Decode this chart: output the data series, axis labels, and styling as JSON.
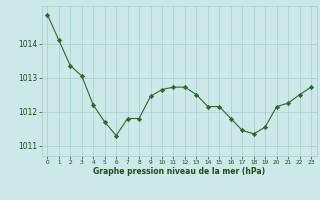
{
  "x": [
    0,
    1,
    2,
    3,
    4,
    5,
    6,
    7,
    8,
    9,
    10,
    11,
    12,
    13,
    14,
    15,
    16,
    17,
    18,
    19,
    20,
    21,
    22,
    23
  ],
  "y": [
    1014.85,
    1014.1,
    1013.35,
    1013.05,
    1012.2,
    1011.7,
    1011.3,
    1011.8,
    1011.8,
    1012.45,
    1012.65,
    1012.72,
    1012.72,
    1012.5,
    1012.15,
    1012.15,
    1011.8,
    1011.45,
    1011.35,
    1011.55,
    1012.15,
    1012.25,
    1012.5,
    1012.72
  ],
  "line_color": "#2d6a2d",
  "marker": "D",
  "marker_size": 2.2,
  "bg_color": "#cde8e8",
  "grid_color": "#aacaca",
  "xlabel": "Graphe pression niveau de la mer (hPa)",
  "xlabel_color": "#1a4d1a",
  "tick_color": "#1a4d1a",
  "yticks": [
    1011,
    1012,
    1013,
    1014
  ],
  "ylim": [
    1010.7,
    1015.1
  ],
  "xlim": [
    -0.5,
    23.5
  ]
}
